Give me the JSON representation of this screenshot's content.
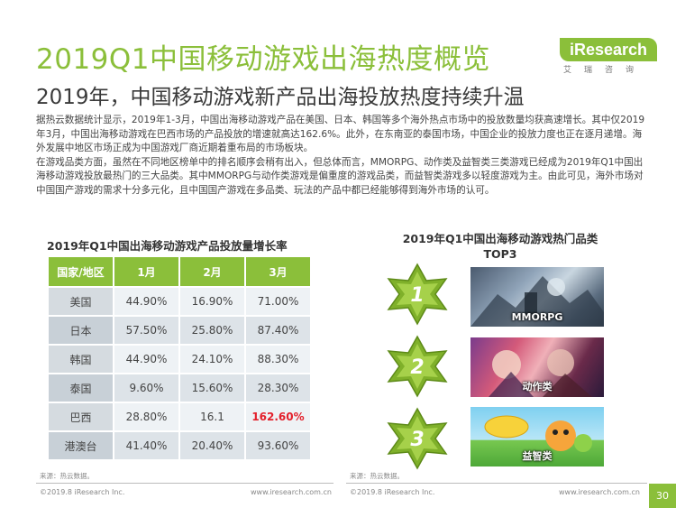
{
  "header": {
    "title": "2019Q1中国移动游戏出海热度概览",
    "subtitle": "2019年，中国移动游戏新产品出海投放热度持续升温",
    "logo_text": "iResearch",
    "logo_subtitle": "艾瑞咨询"
  },
  "intro": {
    "paragraph1": "据热云数据统计显示，2019年1-3月，中国出海移动游戏产品在美国、日本、韩国等多个海外热点市场中的投放数量均获高速增长。其中仅2019年3月，中国出海移动游戏在巴西市场的产品投放的增速就高达162.6%。此外，在东南亚的泰国市场，中国企业的投放力度也正在逐月递增。海外发展中地区市场正成为中国游戏厂商近期着重布局的市场板块。",
    "paragraph2": "在游戏品类方面，虽然在不同地区榜单中的排名顺序会稍有出入，但总体而言，MMORPG、动作类及益智类三类游戏已经成为2019年Q1中国出海移动游戏投放最热门的三大品类。其中MMORPG与动作类游戏是偏重度的游戏品类，而益智类游戏多以轻度游戏为主。由此可见，海外市场对中国国产游戏的需求十分多元化，且中国国产游戏在多品类、玩法的产品中都已经能够得到海外市场的认可。"
  },
  "table": {
    "title": "2019年Q1中国出海移动游戏产品投放量增长率",
    "headers": [
      "国家/地区",
      "1月",
      "2月",
      "3月"
    ],
    "rows": [
      {
        "country": "美国",
        "jan": "44.90%",
        "feb": "16.90%",
        "mar": "71.00%"
      },
      {
        "country": "日本",
        "jan": "57.50%",
        "feb": "25.80%",
        "mar": "87.40%"
      },
      {
        "country": "韩国",
        "jan": "44.90%",
        "feb": "24.10%",
        "mar": "88.30%"
      },
      {
        "country": "泰国",
        "jan": "9.60%",
        "feb": "15.60%",
        "mar": "28.30%"
      },
      {
        "country": "巴西",
        "jan": "28.80%",
        "feb": "16.1",
        "mar": "162.60%"
      },
      {
        "country": "港澳台",
        "jan": "41.40%",
        "feb": "20.40%",
        "mar": "93.60%"
      }
    ],
    "source": "来源：热云数据。"
  },
  "top3": {
    "title_line1": "2019年Q1中国出海移动游戏热门品类",
    "title_line2": "TOP3",
    "items": [
      {
        "rank": "1",
        "category": "MMORPG"
      },
      {
        "rank": "2",
        "category": "动作类"
      },
      {
        "rank": "3",
        "category": "益智类"
      }
    ],
    "source": "来源：热云数据。"
  },
  "footer": {
    "copyright_left": "©2019.8 iResearch Inc.",
    "url_left": "www.iresearch.com.cn",
    "copyright_right": "©2019.8 iResearch Inc.",
    "url_right": "www.iresearch.com.cn",
    "page_number": "30"
  },
  "colors": {
    "accent": "#8bbf3a",
    "highlight": "#e3202b"
  }
}
